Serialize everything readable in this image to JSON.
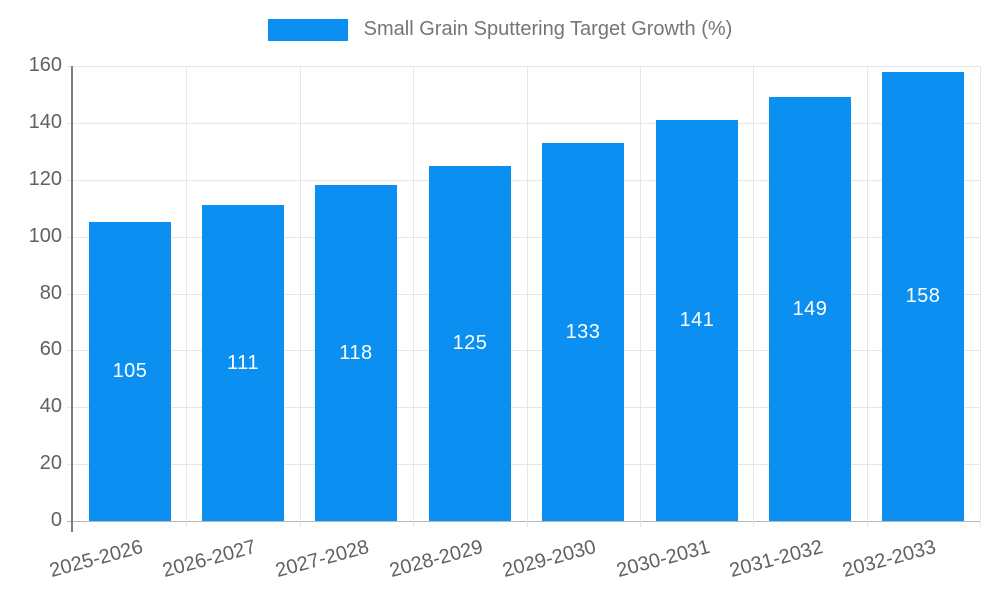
{
  "legend": {
    "label": "Small Grain Sputtering Target Growth (%)"
  },
  "colors": {
    "bar": "#0b90f2",
    "value_label": "#ffffff",
    "axis_line": "#7d7d7d",
    "gridline": "#e6e6e6",
    "baseline": "#b5b5b5",
    "tick_label": "#616161",
    "legend_text": "#757575",
    "background": "#ffffff"
  },
  "chart_data": {
    "type": "bar",
    "title": "Small Grain Sputtering Target Growth (%)",
    "categories": [
      "2025-2026",
      "2026-2027",
      "2027-2028",
      "2028-2029",
      "2029-2030",
      "2030-2031",
      "2031-2032",
      "2032-2033"
    ],
    "values": [
      105,
      111,
      118,
      125,
      133,
      141,
      149,
      158
    ],
    "value_labels": [
      "105",
      "111",
      "118",
      "125",
      "133",
      "141",
      "149",
      "158"
    ],
    "xlabel": "",
    "ylabel": "",
    "ylim": [
      0,
      160
    ],
    "yticks": [
      0,
      20,
      40,
      60,
      80,
      100,
      120,
      140,
      160
    ],
    "ytick_labels": [
      "0",
      "20",
      "40",
      "60",
      "80",
      "100",
      "120",
      "140",
      "160"
    ],
    "grid": true,
    "legend_position": "top-center",
    "bar_color": "#0b90f2",
    "value_labels_inside_bars": true,
    "x_label_rotation_deg": -15
  }
}
